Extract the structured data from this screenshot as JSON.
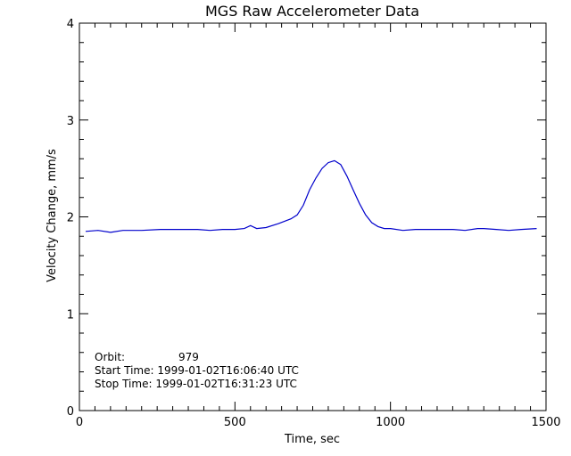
{
  "chart_data": {
    "type": "line",
    "title": "MGS Raw Accelerometer Data",
    "xlabel": "Time, sec",
    "ylabel": "Velocity Change, mm/s",
    "xlim": [
      0,
      1500
    ],
    "ylim": [
      0,
      4
    ],
    "xticks": [
      0,
      500,
      1000,
      1500
    ],
    "yticks": [
      0,
      1,
      2,
      3,
      4
    ],
    "xtick_labels": [
      "0",
      "500",
      "1000",
      "1500"
    ],
    "ytick_labels": [
      "0",
      "1",
      "2",
      "3",
      "4"
    ],
    "grid": false,
    "series": [
      {
        "color": "#0000cc",
        "x": [
          20,
          60,
          100,
          140,
          200,
          260,
          320,
          380,
          420,
          460,
          500,
          530,
          550,
          570,
          600,
          640,
          680,
          700,
          720,
          740,
          760,
          780,
          800,
          820,
          840,
          860,
          880,
          900,
          920,
          940,
          960,
          980,
          1000,
          1040,
          1080,
          1120,
          1160,
          1200,
          1240,
          1280,
          1300,
          1340,
          1380,
          1420,
          1470
        ],
        "y": [
          1.85,
          1.86,
          1.84,
          1.86,
          1.86,
          1.87,
          1.87,
          1.87,
          1.86,
          1.87,
          1.87,
          1.88,
          1.91,
          1.88,
          1.89,
          1.93,
          1.98,
          2.02,
          2.12,
          2.28,
          2.4,
          2.5,
          2.56,
          2.58,
          2.54,
          2.42,
          2.28,
          2.14,
          2.02,
          1.94,
          1.9,
          1.88,
          1.88,
          1.86,
          1.87,
          1.87,
          1.87,
          1.87,
          1.86,
          1.88,
          1.88,
          1.87,
          1.86,
          1.87,
          1.88
        ]
      }
    ]
  },
  "annotations": {
    "orbit_label": "Orbit:",
    "orbit_value": "979",
    "start_line": "Start Time: 1999-01-02T16:06:40 UTC",
    "stop_line": "Stop Time: 1999-01-02T16:31:23 UTC"
  }
}
